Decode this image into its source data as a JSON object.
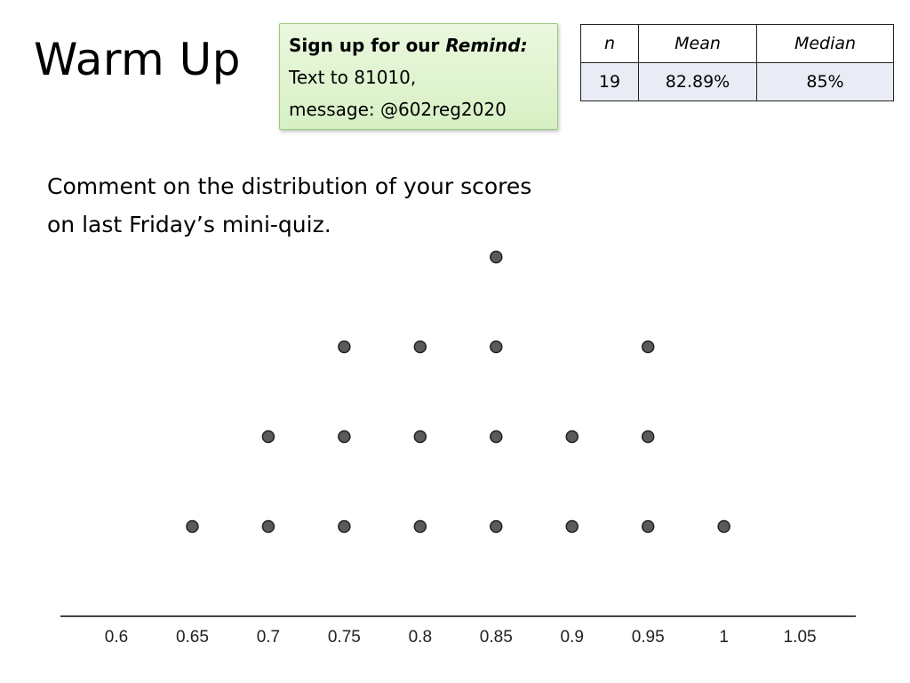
{
  "slide": {
    "title": "Warm Up",
    "remind": {
      "heading_prefix": "Sign up for our ",
      "heading_emphasis": "Remind:",
      "line2": "Text to 81010,",
      "line3": "message: @602reg2020"
    },
    "stats_table": {
      "headers": [
        "n",
        "Mean",
        "Median"
      ],
      "values": [
        "19",
        "82.89%",
        "85%"
      ]
    },
    "prompt_line1": "Comment on the distribution of your scores",
    "prompt_line2": "on last Friday’s mini-quiz."
  },
  "chart_data": {
    "type": "scatter",
    "subtype": "dot plot",
    "title": "",
    "xlabel": "",
    "ylabel": "",
    "xlim": [
      0.57,
      1.1
    ],
    "ticks": [
      "0.6",
      "0.65",
      "0.7",
      "0.75",
      "0.8",
      "0.85",
      "0.9",
      "0.95",
      "1",
      "1.05"
    ],
    "x": [
      0.65,
      0.7,
      0.75,
      0.8,
      0.85,
      0.9,
      0.95,
      1.0
    ],
    "counts": [
      1,
      2,
      3,
      3,
      4,
      2,
      3,
      1
    ],
    "dot_color": "#5a5a5a",
    "grid": false
  }
}
